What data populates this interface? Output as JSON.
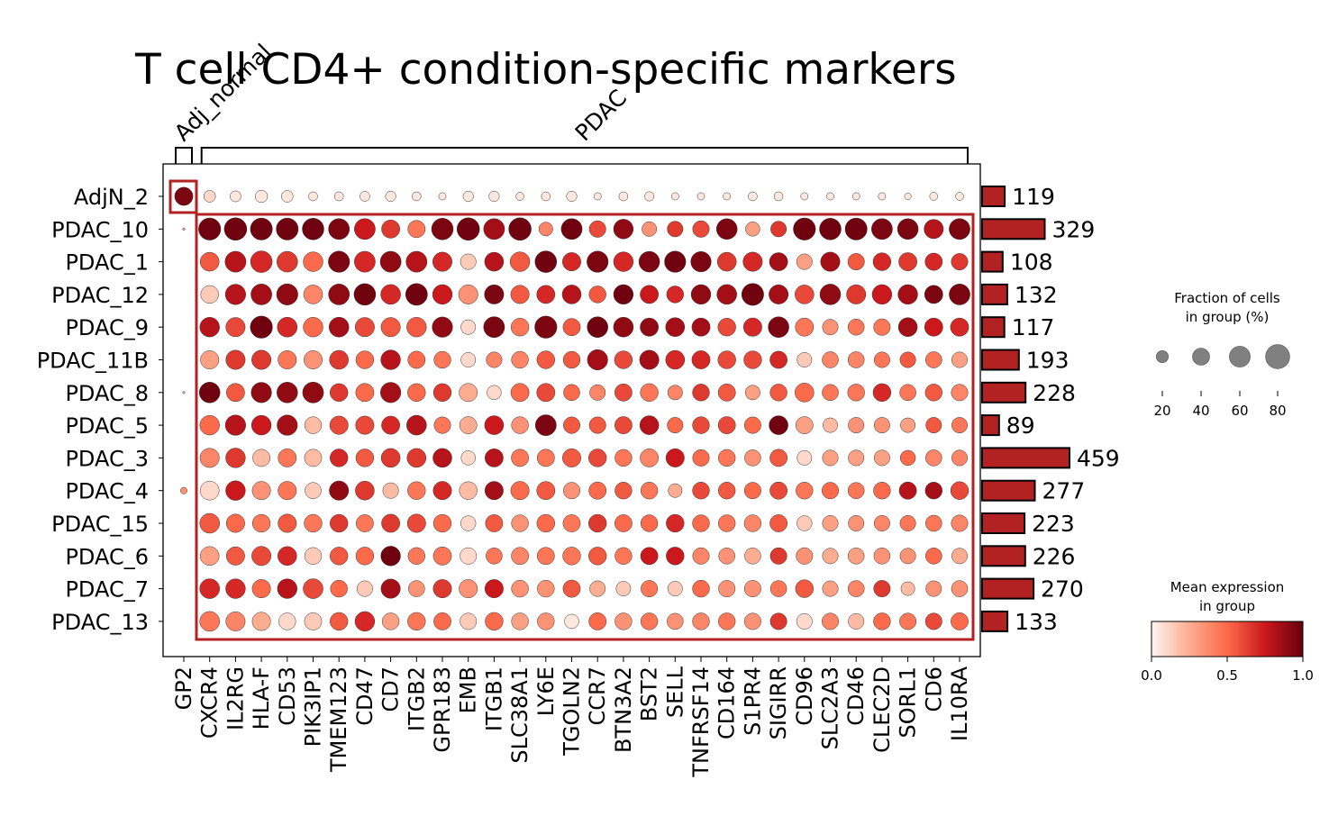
{
  "chart_data": {
    "type": "dotplot",
    "title": "T cell CD4+ condition-specific markers",
    "groups": [
      "AdjN_2",
      "PDAC_10",
      "PDAC_1",
      "PDAC_12",
      "PDAC_9",
      "PDAC_11B",
      "PDAC_8",
      "PDAC_5",
      "PDAC_3",
      "PDAC_4",
      "PDAC_15",
      "PDAC_6",
      "PDAC_7",
      "PDAC_13"
    ],
    "genes": [
      "GP2",
      "CXCR4",
      "IL2RG",
      "HLA-F",
      "CD53",
      "PIK3IP1",
      "TMEM123",
      "CD47",
      "CD7",
      "ITGB2",
      "GPR183",
      "EMB",
      "ITGB1",
      "SLC38A1",
      "LY6E",
      "TGOLN2",
      "CCR7",
      "BTN3A2",
      "BST2",
      "SELL",
      "TNFRSF14",
      "CD164",
      "S1PR4",
      "SIGIRR",
      "CD96",
      "SLC2A3",
      "CD46",
      "CLEC2D",
      "SORL1",
      "CD6",
      "IL10RA"
    ],
    "gene_groups": [
      {
        "label": "Adj_normal",
        "genes": [
          "GP2"
        ]
      },
      {
        "label": "PDAC",
        "genes": [
          "CXCR4",
          "IL10RA"
        ]
      }
    ],
    "cell_counts": [
      119,
      329,
      108,
      132,
      117,
      193,
      228,
      89,
      459,
      277,
      223,
      226,
      270,
      133
    ],
    "fraction": [
      [
        60,
        25,
        22,
        28,
        25,
        15,
        15,
        18,
        20,
        15,
        10,
        20,
        20,
        12,
        15,
        20,
        10,
        15,
        16,
        10,
        10,
        10,
        15,
        15,
        10,
        10,
        10,
        10,
        8,
        12,
        12
      ],
      [
        1,
        90,
        92,
        88,
        88,
        85,
        80,
        80,
        60,
        55,
        85,
        92,
        80,
        92,
        35,
        80,
        50,
        70,
        40,
        45,
        50,
        78,
        38,
        45,
        90,
        85,
        88,
        80,
        78,
        68,
        80
      ],
      [
        0,
        65,
        80,
        85,
        78,
        70,
        82,
        80,
        80,
        80,
        68,
        45,
        65,
        70,
        85,
        62,
        82,
        70,
        78,
        82,
        75,
        65,
        68,
        60,
        45,
        68,
        50,
        58,
        60,
        55,
        50
      ],
      [
        0,
        58,
        75,
        80,
        82,
        65,
        80,
        85,
        72,
        86,
        70,
        68,
        68,
        62,
        60,
        65,
        52,
        70,
        60,
        52,
        70,
        72,
        88,
        68,
        65,
        78,
        68,
        70,
        70,
        60,
        80
      ],
      [
        0,
        70,
        68,
        90,
        72,
        70,
        72,
        68,
        68,
        70,
        75,
        40,
        80,
        58,
        90,
        55,
        78,
        72,
        60,
        65,
        60,
        58,
        62,
        78,
        60,
        45,
        48,
        50,
        65,
        60,
        60
      ],
      [
        0,
        62,
        68,
        68,
        62,
        62,
        65,
        58,
        70,
        55,
        52,
        40,
        45,
        52,
        58,
        52,
        75,
        58,
        68,
        65,
        60,
        58,
        58,
        55,
        40,
        48,
        48,
        45,
        45,
        48,
        45
      ],
      [
        1,
        78,
        60,
        75,
        78,
        80,
        58,
        60,
        75,
        58,
        58,
        60,
        38,
        60,
        60,
        48,
        45,
        55,
        58,
        40,
        52,
        55,
        40,
        52,
        65,
        48,
        52,
        58,
        48,
        52,
        50
      ],
      [
        0,
        70,
        75,
        70,
        75,
        52,
        62,
        62,
        60,
        72,
        50,
        55,
        65,
        52,
        80,
        50,
        50,
        55,
        65,
        45,
        52,
        55,
        50,
        65,
        55,
        40,
        45,
        45,
        40,
        45,
        45
      ],
      [
        0,
        68,
        70,
        55,
        60,
        55,
        58,
        58,
        65,
        65,
        65,
        38,
        60,
        55,
        55,
        62,
        58,
        52,
        60,
        62,
        50,
        52,
        48,
        55,
        40,
        45,
        45,
        45,
        42,
        48,
        45
      ],
      [
        8,
        65,
        70,
        62,
        62,
        48,
        68,
        65,
        45,
        58,
        62,
        58,
        62,
        62,
        60,
        50,
        55,
        52,
        52,
        35,
        52,
        52,
        50,
        55,
        52,
        50,
        48,
        52,
        55,
        52,
        58
      ],
      [
        0,
        72,
        62,
        58,
        62,
        58,
        58,
        55,
        60,
        62,
        58,
        42,
        55,
        52,
        58,
        55,
        58,
        55,
        52,
        58,
        52,
        52,
        52,
        55,
        42,
        45,
        45,
        45,
        45,
        48,
        50
      ],
      [
        0,
        65,
        62,
        68,
        65,
        52,
        58,
        58,
        70,
        52,
        60,
        50,
        48,
        55,
        55,
        58,
        58,
        52,
        55,
        58,
        50,
        48,
        48,
        50,
        50,
        45,
        48,
        48,
        45,
        48,
        45
      ],
      [
        0,
        72,
        70,
        62,
        70,
        72,
        52,
        45,
        68,
        48,
        62,
        62,
        62,
        52,
        52,
        55,
        45,
        40,
        50,
        40,
        52,
        50,
        50,
        48,
        58,
        45,
        48,
        50,
        35,
        45,
        48
      ],
      [
        0,
        72,
        68,
        62,
        52,
        55,
        58,
        70,
        52,
        58,
        55,
        50,
        58,
        52,
        52,
        38,
        55,
        52,
        52,
        48,
        52,
        52,
        50,
        50,
        45,
        50,
        45,
        52,
        50,
        50,
        55
      ]
    ],
    "expression": [
      [
        0.95,
        0.1,
        0.05,
        0.05,
        0.05,
        0.05,
        0.05,
        0.05,
        0.05,
        0.05,
        0.05,
        0.05,
        0.05,
        0.05,
        0.05,
        0.05,
        0.05,
        0.05,
        0.05,
        0.05,
        0.05,
        0.05,
        0.05,
        0.05,
        0.05,
        0.05,
        0.05,
        0.05,
        0.05,
        0.05,
        0.05
      ],
      [
        0.3,
        0.98,
        0.98,
        0.98,
        0.98,
        0.98,
        0.95,
        0.75,
        0.65,
        0.45,
        0.95,
        0.98,
        0.85,
        0.98,
        0.4,
        0.98,
        0.6,
        0.9,
        0.35,
        0.65,
        0.6,
        0.95,
        0.3,
        0.65,
        0.98,
        0.98,
        0.98,
        0.95,
        0.95,
        0.8,
        0.95
      ],
      [
        0,
        0.55,
        0.8,
        0.7,
        0.65,
        0.5,
        0.95,
        0.7,
        0.9,
        0.8,
        0.7,
        0.15,
        0.8,
        0.55,
        0.98,
        0.7,
        0.95,
        0.7,
        0.95,
        0.98,
        0.95,
        0.65,
        0.7,
        0.85,
        0.3,
        0.85,
        0.55,
        0.7,
        0.65,
        0.7,
        0.65
      ],
      [
        0,
        0.15,
        0.8,
        0.85,
        0.9,
        0.4,
        0.9,
        0.98,
        0.7,
        0.98,
        0.75,
        0.35,
        0.95,
        0.55,
        0.7,
        0.8,
        0.55,
        0.98,
        0.75,
        0.7,
        0.9,
        0.85,
        0.98,
        0.85,
        0.6,
        0.9,
        0.65,
        0.75,
        0.85,
        0.95,
        0.95
      ],
      [
        0,
        0.8,
        0.6,
        0.98,
        0.7,
        0.5,
        0.85,
        0.6,
        0.55,
        0.55,
        0.9,
        0.1,
        0.95,
        0.45,
        0.95,
        0.55,
        0.98,
        0.9,
        0.9,
        0.85,
        0.85,
        0.6,
        0.7,
        0.95,
        0.45,
        0.35,
        0.45,
        0.45,
        0.85,
        0.75,
        0.7
      ],
      [
        0,
        0.3,
        0.65,
        0.65,
        0.45,
        0.35,
        0.65,
        0.5,
        0.8,
        0.5,
        0.45,
        0.1,
        0.4,
        0.4,
        0.55,
        0.55,
        0.85,
        0.6,
        0.85,
        0.7,
        0.7,
        0.6,
        0.6,
        0.7,
        0.15,
        0.4,
        0.4,
        0.45,
        0.55,
        0.45,
        0.3
      ],
      [
        0.2,
        0.98,
        0.55,
        0.9,
        0.9,
        0.9,
        0.65,
        0.5,
        0.85,
        0.5,
        0.65,
        0.25,
        0.1,
        0.5,
        0.6,
        0.5,
        0.4,
        0.6,
        0.45,
        0.4,
        0.65,
        0.55,
        0.3,
        0.55,
        0.5,
        0.45,
        0.45,
        0.7,
        0.45,
        0.55,
        0.4
      ],
      [
        0,
        0.5,
        0.8,
        0.75,
        0.85,
        0.2,
        0.6,
        0.6,
        0.7,
        0.8,
        0.45,
        0.25,
        0.75,
        0.35,
        0.95,
        0.55,
        0.55,
        0.6,
        0.8,
        0.5,
        0.6,
        0.6,
        0.5,
        0.98,
        0.3,
        0.2,
        0.35,
        0.35,
        0.3,
        0.55,
        0.45
      ],
      [
        0,
        0.4,
        0.65,
        0.2,
        0.45,
        0.2,
        0.7,
        0.55,
        0.65,
        0.65,
        0.8,
        0.1,
        0.8,
        0.45,
        0.45,
        0.55,
        0.6,
        0.45,
        0.4,
        0.75,
        0.5,
        0.45,
        0.35,
        0.55,
        0.1,
        0.3,
        0.3,
        0.3,
        0.5,
        0.4,
        0.4
      ],
      [
        0.35,
        0.1,
        0.75,
        0.35,
        0.45,
        0.15,
        0.9,
        0.65,
        0.2,
        0.45,
        0.7,
        0.2,
        0.85,
        0.5,
        0.55,
        0.35,
        0.5,
        0.55,
        0.45,
        0.25,
        0.6,
        0.55,
        0.5,
        0.6,
        0.45,
        0.5,
        0.45,
        0.5,
        0.8,
        0.85,
        0.6
      ],
      [
        0,
        0.55,
        0.5,
        0.45,
        0.55,
        0.45,
        0.65,
        0.45,
        0.65,
        0.6,
        0.5,
        0.1,
        0.55,
        0.35,
        0.5,
        0.45,
        0.65,
        0.5,
        0.5,
        0.7,
        0.5,
        0.45,
        0.4,
        0.55,
        0.15,
        0.3,
        0.35,
        0.4,
        0.45,
        0.45,
        0.4
      ],
      [
        0,
        0.3,
        0.55,
        0.6,
        0.7,
        0.15,
        0.55,
        0.5,
        0.98,
        0.45,
        0.45,
        0.1,
        0.45,
        0.4,
        0.45,
        0.45,
        0.55,
        0.45,
        0.75,
        0.75,
        0.4,
        0.35,
        0.25,
        0.65,
        0.35,
        0.25,
        0.3,
        0.35,
        0.35,
        0.5,
        0.25
      ],
      [
        0,
        0.7,
        0.7,
        0.5,
        0.8,
        0.6,
        0.5,
        0.15,
        0.85,
        0.35,
        0.65,
        0.35,
        0.75,
        0.35,
        0.35,
        0.55,
        0.25,
        0.15,
        0.45,
        0.15,
        0.5,
        0.35,
        0.35,
        0.45,
        0.55,
        0.3,
        0.4,
        0.65,
        0.2,
        0.35,
        0.35
      ],
      [
        0,
        0.45,
        0.4,
        0.25,
        0.1,
        0.15,
        0.55,
        0.7,
        0.3,
        0.45,
        0.5,
        0.15,
        0.5,
        0.3,
        0.35,
        0.05,
        0.5,
        0.35,
        0.45,
        0.35,
        0.4,
        0.45,
        0.35,
        0.65,
        0.1,
        0.4,
        0.2,
        0.5,
        0.45,
        0.6,
        0.5
      ]
    ],
    "size_legend": {
      "title": "Fraction of cells\nin group (%)",
      "values": [
        20,
        40,
        60,
        80
      ]
    },
    "color_legend": {
      "title": "Mean expression\nin group",
      "ticks": [
        "0.0",
        "0.5",
        "1.0"
      ],
      "colormap": "Reds"
    },
    "highlight_color": "#b22222",
    "bar_color": "#b22222"
  }
}
